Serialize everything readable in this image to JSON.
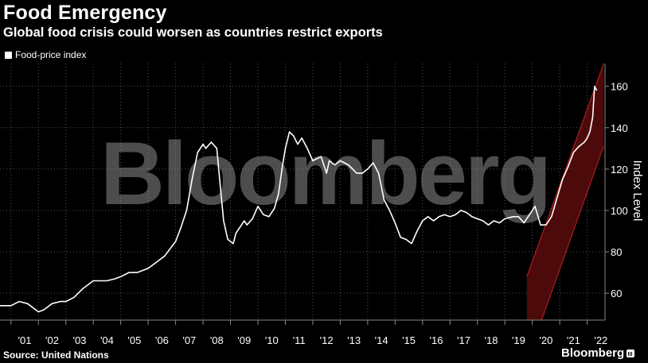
{
  "header": {
    "title": "Food Emergency",
    "subtitle": "Global food crisis could worsen as countries restrict exports"
  },
  "legend": {
    "label": "Food-price index"
  },
  "watermark": "Bloomberg",
  "footer": {
    "source": "Source: United Nations",
    "brand": "Bloomberg"
  },
  "colors": {
    "background": "#000000",
    "line": "#ffffff",
    "channel_fill": "#5a0c0c",
    "channel_edge": "#c22020",
    "grid": "#555555"
  },
  "chart_data": {
    "type": "line",
    "title": "Food Emergency",
    "subtitle": "Global food crisis could worsen as countries restrict exports",
    "ylabel": "Index Level",
    "xlabel": "",
    "xlim": [
      2000.6,
      2022.65
    ],
    "ylim": [
      47,
      171
    ],
    "yticks": [
      60,
      80,
      100,
      120,
      140,
      160
    ],
    "xtick_labels": [
      "'01",
      "'02",
      "'03",
      "'04",
      "'05",
      "'06",
      "'07",
      "'08",
      "'09",
      "'10",
      "'11",
      "'12",
      "'13",
      "'14",
      "'15",
      "'16",
      "'17",
      "'18",
      "'19",
      "'20",
      "'21",
      "'22"
    ],
    "xtick_positions": [
      2001.5,
      2002.5,
      2003.5,
      2004.5,
      2005.5,
      2006.5,
      2007.5,
      2008.5,
      2009.5,
      2010.5,
      2011.5,
      2012.5,
      2013.5,
      2014.5,
      2015.5,
      2016.5,
      2017.5,
      2018.5,
      2019.5,
      2020.5,
      2021.5,
      2022.5
    ],
    "grid": true,
    "legend_position": "top-left",
    "series": [
      {
        "name": "Food-price index",
        "x": [
          2000.6,
          2001.0,
          2001.3,
          2001.6,
          2002.0,
          2002.2,
          2002.5,
          2002.8,
          2003.0,
          2003.3,
          2003.6,
          2004.0,
          2004.2,
          2004.5,
          2004.8,
          2005.0,
          2005.3,
          2005.6,
          2006.0,
          2006.3,
          2006.6,
          2007.0,
          2007.2,
          2007.4,
          2007.6,
          2007.8,
          2008.0,
          2008.1,
          2008.3,
          2008.5,
          2008.6,
          2008.75,
          2008.9,
          2009.1,
          2009.2,
          2009.35,
          2009.5,
          2009.6,
          2009.8,
          2010.0,
          2010.2,
          2010.4,
          2010.6,
          2010.75,
          2010.9,
          2011.0,
          2011.15,
          2011.3,
          2011.45,
          2011.6,
          2011.8,
          2012.0,
          2012.3,
          2012.5,
          2012.6,
          2012.8,
          2013.0,
          2013.3,
          2013.6,
          2013.8,
          2014.0,
          2014.2,
          2014.4,
          2014.6,
          2014.8,
          2015.0,
          2015.2,
          2015.4,
          2015.6,
          2015.8,
          2016.0,
          2016.2,
          2016.4,
          2016.6,
          2016.8,
          2017.0,
          2017.2,
          2017.4,
          2017.6,
          2017.8,
          2018.0,
          2018.2,
          2018.4,
          2018.6,
          2018.8,
          2019.0,
          2019.3,
          2019.5,
          2019.7,
          2019.9,
          2020.1,
          2020.3,
          2020.5,
          2020.7,
          2020.9,
          2021.1,
          2021.3,
          2021.5,
          2021.7,
          2021.9,
          2022.0,
          2022.1,
          2022.2,
          2022.27,
          2022.35
        ],
        "y": [
          54,
          54,
          56,
          55,
          51,
          52,
          55,
          56,
          56,
          58,
          62,
          66,
          66,
          66,
          67,
          68,
          70,
          70,
          72,
          75,
          78,
          85,
          92,
          100,
          115,
          128,
          132,
          130,
          133,
          130,
          116,
          95,
          86,
          84,
          89,
          92,
          95,
          93,
          96,
          102,
          98,
          97,
          101,
          108,
          122,
          130,
          138,
          136,
          132,
          135,
          130,
          124,
          126,
          118,
          124,
          122,
          124,
          122,
          118,
          118,
          120,
          123,
          118,
          105,
          100,
          94,
          87,
          86,
          84,
          90,
          95,
          97,
          95,
          97,
          98,
          97,
          98,
          100,
          99,
          97,
          96,
          95,
          93,
          95,
          94,
          96,
          97,
          97,
          94,
          98,
          102,
          93,
          93,
          97,
          106,
          115,
          121,
          128,
          131,
          133,
          135,
          138,
          145,
          160,
          158
        ]
      }
    ],
    "annotations": [
      {
        "type": "channel",
        "description": "uptrend channel",
        "x_start": 2019.8,
        "x_end": 2022.6,
        "upper_start": 68,
        "upper_end": 171,
        "lower_start": 27,
        "lower_end": 131
      }
    ]
  }
}
